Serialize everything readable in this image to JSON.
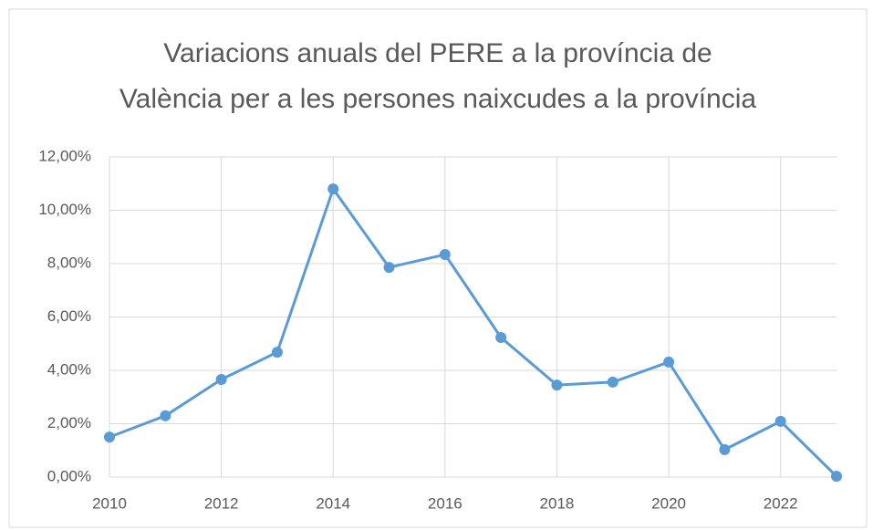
{
  "chart_data": {
    "type": "line",
    "title": "Variacions anuals del PERE a la província de València per a les persones naixcudes a la província",
    "x": [
      2010,
      2011,
      2012,
      2013,
      2014,
      2015,
      2016,
      2017,
      2018,
      2019,
      2020,
      2021,
      2022,
      2023
    ],
    "series": [
      {
        "name": "PERE",
        "color": "#5b9bd5",
        "values": [
          1.5,
          2.3,
          3.66,
          4.68,
          10.8,
          7.86,
          8.34,
          5.23,
          3.45,
          3.56,
          4.31,
          1.03,
          2.09,
          0.03
        ]
      }
    ],
    "xlim": [
      2010,
      2023
    ],
    "xticks": [
      2010,
      2012,
      2014,
      2016,
      2018,
      2020,
      2022
    ],
    "ylim": [
      0,
      12
    ],
    "yticks": [
      {
        "value": 0,
        "label": "0,00%"
      },
      {
        "value": 2,
        "label": "2,00%"
      },
      {
        "value": 4,
        "label": "4,00%"
      },
      {
        "value": 6,
        "label": "6,00%"
      },
      {
        "value": 8,
        "label": "8,00%"
      },
      {
        "value": 10,
        "label": "10,00%"
      },
      {
        "value": 12,
        "label": "12,00%"
      }
    ],
    "grid": true
  }
}
